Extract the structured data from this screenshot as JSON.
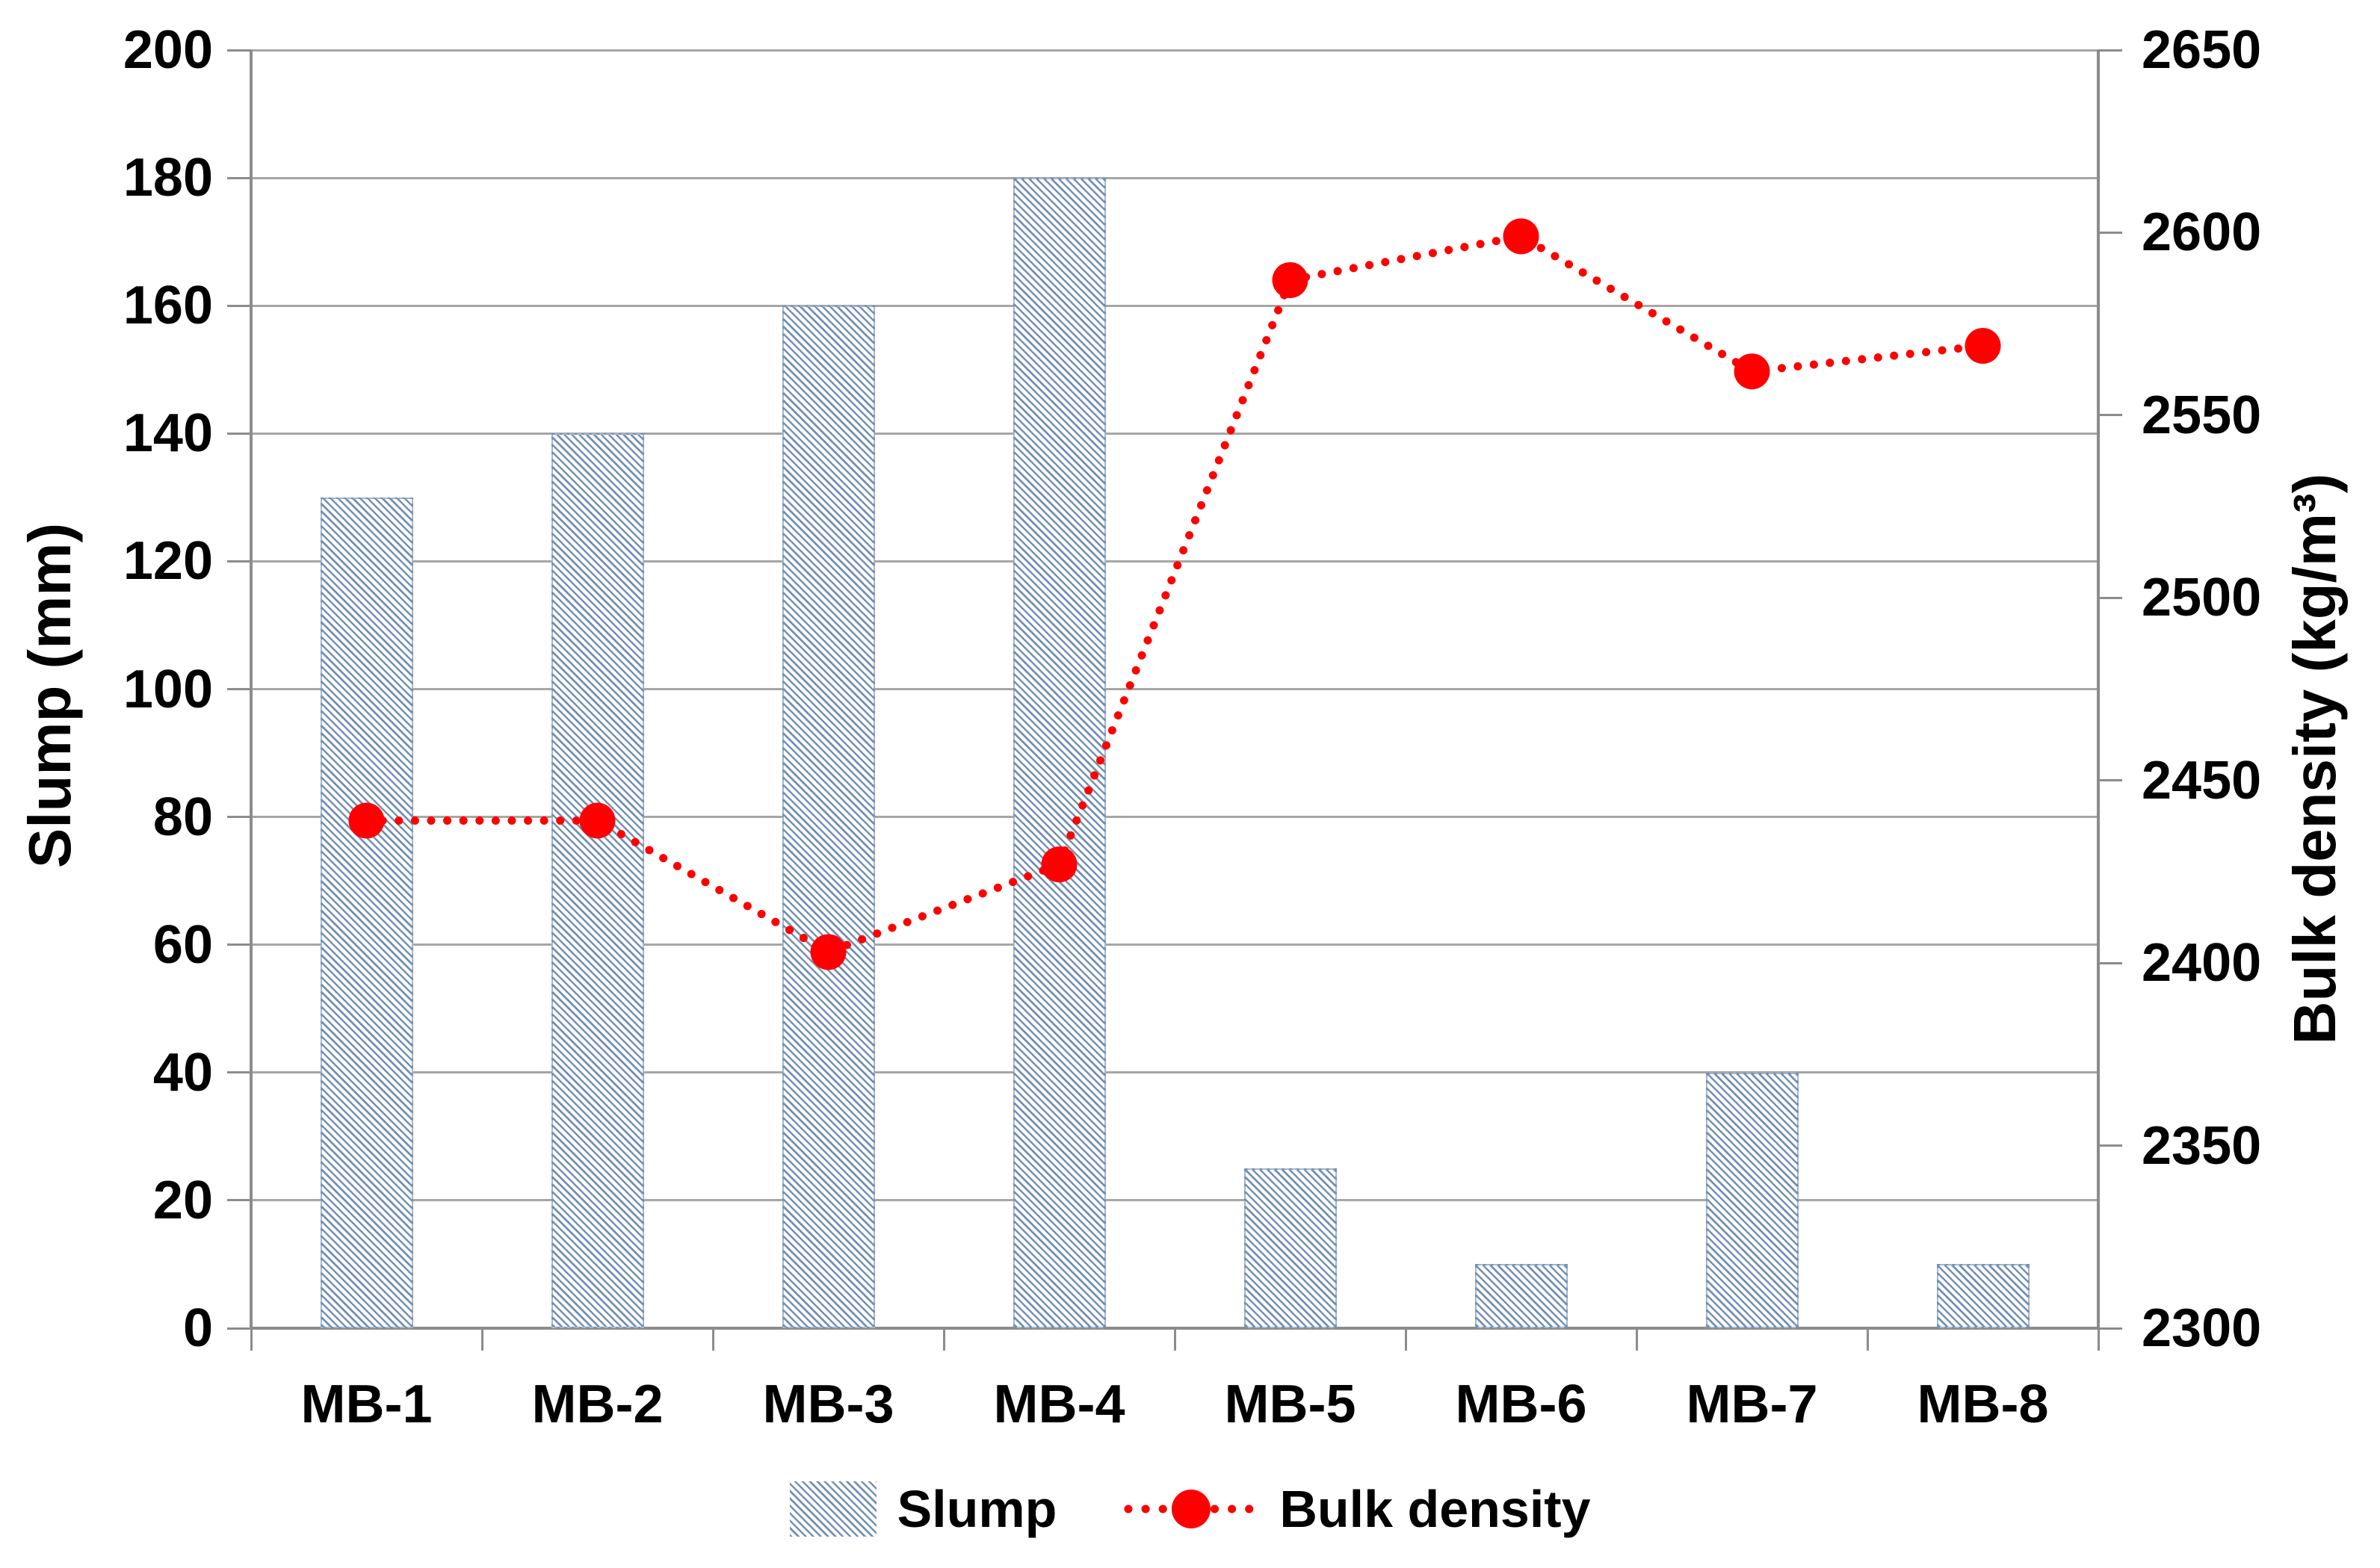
{
  "chart_data": {
    "type": "combo-bar-line",
    "title": "",
    "categories": [
      "MB-1",
      "MB-2",
      "MB-3",
      "MB-4",
      "MB-5",
      "MB-6",
      "MB-7",
      "MB-8"
    ],
    "series": [
      {
        "name": "Slump",
        "type": "bar",
        "axis": "left",
        "values": [
          130,
          140,
          160,
          180,
          25,
          10,
          40,
          10
        ]
      },
      {
        "name": "Bulk density",
        "type": "line",
        "axis": "right",
        "line_style": "dotted",
        "marker": "circle",
        "values": [
          2439,
          2439,
          2403,
          2427,
          2587,
          2599,
          2562,
          2569
        ]
      }
    ],
    "left_axis": {
      "label": "Slump (mm)",
      "min": 0,
      "max": 200,
      "step": 20,
      "tick_labels": [
        "0",
        "20",
        "40",
        "60",
        "80",
        "100",
        "120",
        "140",
        "160",
        "180",
        "200"
      ]
    },
    "right_axis": {
      "label": "Bulk density (kg/m³)",
      "min": 2300,
      "max": 2650,
      "step": 50,
      "tick_labels": [
        "2300",
        "2350",
        "2400",
        "2450",
        "2500",
        "2550",
        "2600",
        "2650"
      ]
    },
    "legend": {
      "position": "bottom",
      "items": [
        "Slump",
        "Bulk density"
      ]
    },
    "grid": true,
    "colors": {
      "bar_hatch": "#7491b5",
      "line": "#fe0000",
      "marker": "#fe0000",
      "gridline": "#a6a6a6",
      "axis": "#8c8c8c",
      "text": "#000000",
      "background": "#ffffff"
    }
  }
}
